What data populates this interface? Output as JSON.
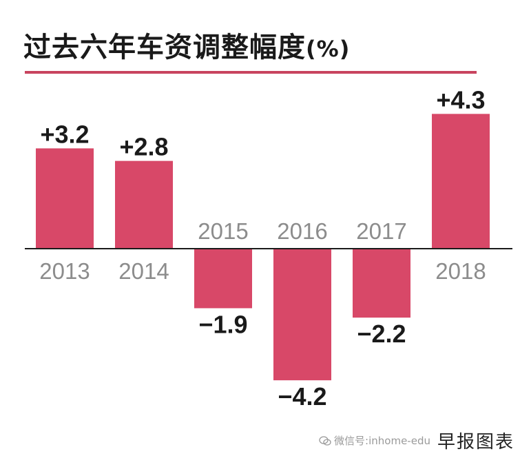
{
  "title": "过去六年车资调整幅度",
  "unit": "(%)",
  "chart_data": {
    "type": "bar",
    "title": "过去六年车资调整幅度",
    "unit": "(%)",
    "categories": [
      "2013",
      "2014",
      "2015",
      "2016",
      "2017",
      "2018"
    ],
    "values": [
      3.2,
      2.8,
      -1.9,
      -4.2,
      -2.2,
      4.3
    ],
    "value_labels": [
      "+3.2",
      "+2.8",
      "−1.9",
      "−4.2",
      "−2.2",
      "+4.3"
    ],
    "bar_color": "#d84868",
    "ylim": [
      -4.5,
      4.5
    ],
    "grid": false,
    "legend": "none"
  },
  "watermark": "微信号:inhome-edu",
  "source": "早报图表"
}
